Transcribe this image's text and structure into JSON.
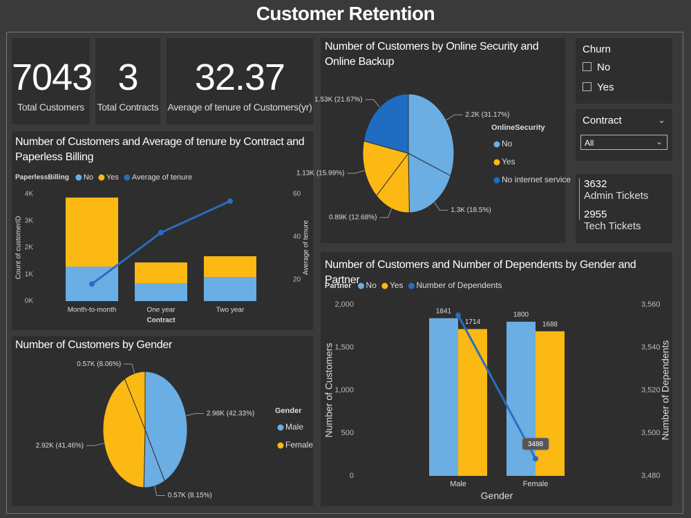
{
  "title": "Customer Retention",
  "cards": [
    {
      "value": 7043,
      "label": "Total Customers"
    },
    {
      "value": 3,
      "label": "Total Contracts"
    },
    {
      "value": 32.37,
      "label": "Average of tenure of Customers(yr)"
    }
  ],
  "slicers": [
    {
      "title": "Churn",
      "options": [
        "No",
        "Yes"
      ]
    },
    {
      "title": "Contract",
      "selected": "All"
    }
  ],
  "tickets": [
    {
      "value": 3632,
      "label": "Admin Tickets"
    },
    {
      "value": 2955,
      "label": "Tech Tickets"
    }
  ],
  "chart_data": [
    {
      "type": "bar",
      "stacked": true,
      "title": "Number of Customers and Average of tenure by Contract and Paperless Billing",
      "legend_title": "PaperlessBilling",
      "categories": [
        "Month-to-month",
        "One year",
        "Two year"
      ],
      "x_label": "Contract",
      "y_label": "Count of customerID",
      "y2_label": "Average of tenure",
      "ylim": [
        0,
        4000
      ],
      "yticks": [
        {
          "value": 0,
          "label": "0K"
        },
        {
          "value": 1000,
          "label": "1K"
        },
        {
          "value": 2000,
          "label": "2K"
        },
        {
          "value": 3000,
          "label": "3K"
        },
        {
          "value": 4000,
          "label": "4K"
        }
      ],
      "y2lim": [
        10,
        60
      ],
      "y2ticks": [
        20,
        40,
        60
      ],
      "series": [
        {
          "name": "No",
          "color": "#6aaee4",
          "values": [
            1290,
            671,
            903
          ]
        },
        {
          "name": "Yes",
          "color": "#fdb913",
          "values": [
            2580,
            774,
            774
          ]
        },
        {
          "name": "Average of tenure",
          "type": "line",
          "axis": "y2",
          "color": "#2b6cbf",
          "values": [
            18,
            42,
            56.7
          ]
        }
      ]
    },
    {
      "type": "pie",
      "title": "Number of Customers by Gender",
      "legend_title": "Gender",
      "legend": [
        {
          "name": "Male",
          "color": "#6aaee4"
        },
        {
          "name": "Female",
          "color": "#fdb913"
        }
      ],
      "values": [
        42.33,
        8.15,
        41.46,
        8.06
      ],
      "value_labels": [
        "2.98K (42.33%)",
        "0.57K (8.15%)",
        "2.92K (41.46%)",
        "0.57K (8.06%)"
      ],
      "colors": [
        "#6aaee4",
        "#6aaee4",
        "#fdb913",
        "#fdb913"
      ]
    },
    {
      "type": "pie",
      "title": "Number of Customers by Online Security and Online Backup",
      "legend_title": "OnlineSecurity",
      "legend": [
        {
          "name": "No",
          "color": "#6aaee4"
        },
        {
          "name": "Yes",
          "color": "#fdb913"
        },
        {
          "name": "No internet service",
          "color": "#1f6dc2"
        }
      ],
      "values": [
        31.17,
        18.5,
        12.68,
        15.99,
        21.67
      ],
      "value_labels": [
        "2.2K (31.17%)",
        "1.3K (18.5%)",
        "0.89K (12.68%)",
        "1.13K (15.99%)",
        "1.53K (21.67%)"
      ],
      "colors": [
        "#6aaee4",
        "#6aaee4",
        "#fdb913",
        "#fdb913",
        "#1f6dc2"
      ]
    },
    {
      "type": "bar",
      "stacked": false,
      "data_labels": true,
      "title": "Number of Customers and Number of Dependents by Gender and Partner",
      "legend_title": "Partner",
      "categories": [
        "Male",
        "Female"
      ],
      "x_label": "Gender",
      "y_label": "Number of Customers",
      "y2_label": "Number of Dependents",
      "ylim": [
        0,
        2000
      ],
      "yticks": [
        0,
        500,
        {
          "value": 1000,
          "label": "1,000"
        },
        {
          "value": 1500,
          "label": "1,500"
        },
        {
          "value": 2000,
          "label": "2,000"
        }
      ],
      "y2lim": [
        3480,
        3560
      ],
      "y2ticks": [
        {
          "value": 3480,
          "label": "3,480"
        },
        {
          "value": 3500,
          "label": "3,500"
        },
        {
          "value": 3520,
          "label": "3,520"
        },
        {
          "value": 3540,
          "label": "3,540"
        },
        {
          "value": 3560,
          "label": "3,560"
        }
      ],
      "series": [
        {
          "name": "No",
          "color": "#6aaee4",
          "values": [
            1841,
            1800
          ]
        },
        {
          "name": "Yes",
          "color": "#fdb913",
          "values": [
            1714,
            1688
          ]
        },
        {
          "name": "Number of Dependents",
          "type": "line",
          "axis": "y2",
          "color": "#2b6cbf",
          "values": [
            3555,
            3488
          ],
          "value_labels": [
            null,
            "3488"
          ]
        }
      ]
    }
  ]
}
